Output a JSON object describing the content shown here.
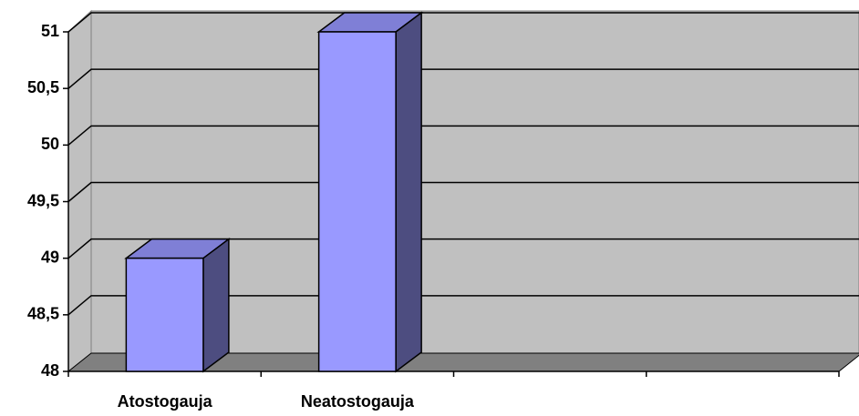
{
  "chart_data": {
    "type": "bar3d",
    "categories": [
      "Atostogauja",
      "Neatostogauja",
      null,
      null
    ],
    "values": [
      49,
      51,
      null,
      null
    ],
    "color": "#9999ff",
    "ylim": [
      48,
      51
    ],
    "yticks": [
      48,
      {
        "value": 48.5,
        "label": "48,5"
      },
      49,
      {
        "value": 49.5,
        "label": "49,5"
      },
      50,
      {
        "value": 50.5,
        "label": "50,5"
      },
      51
    ],
    "grid": true
  }
}
